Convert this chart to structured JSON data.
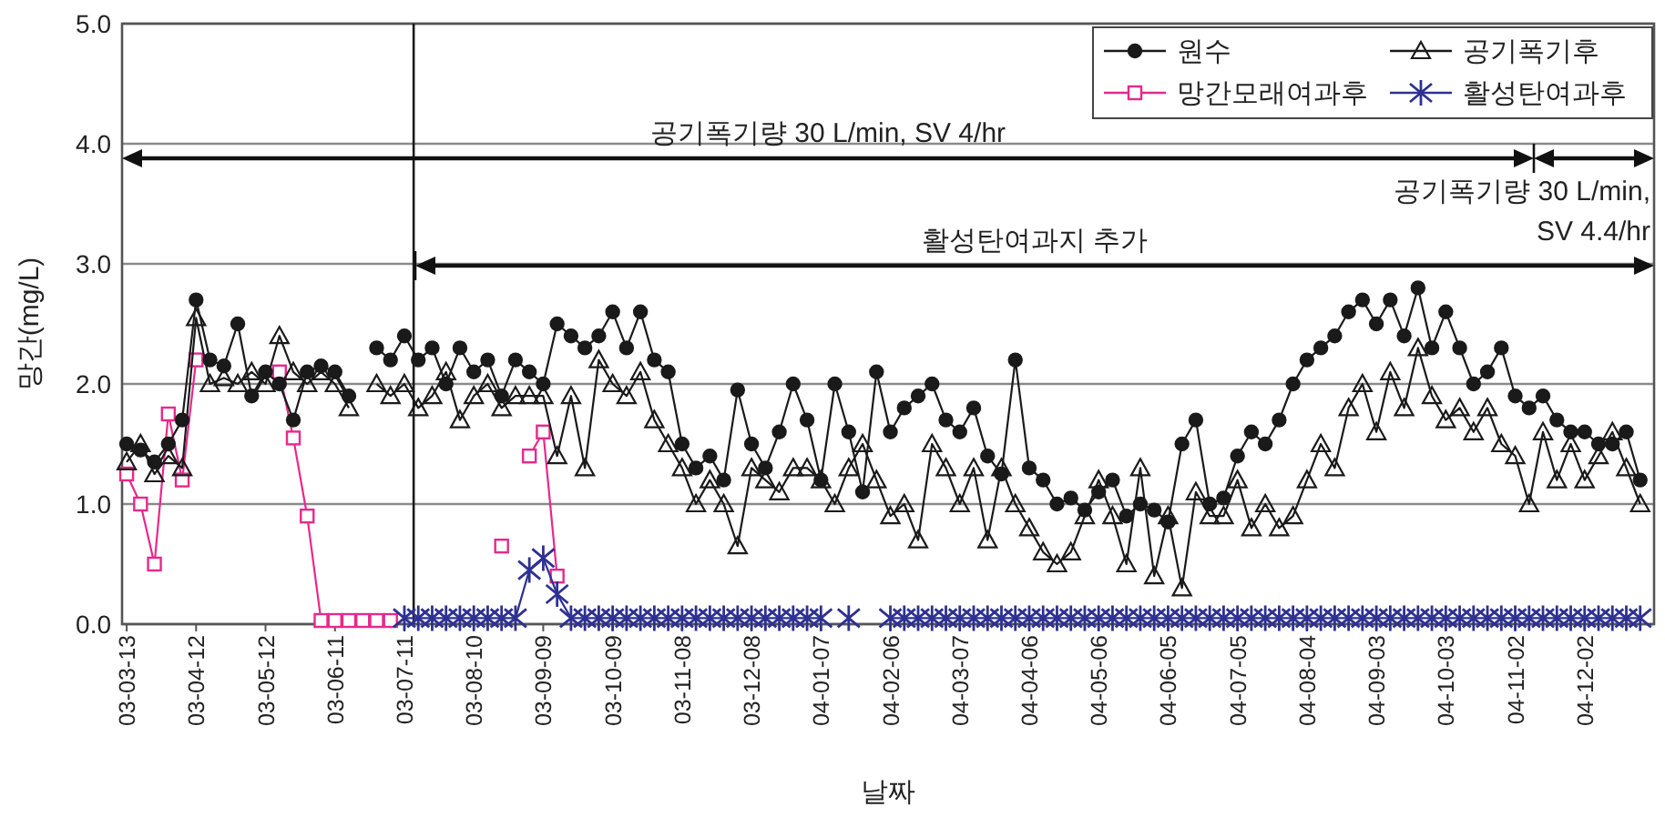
{
  "chart_data": {
    "type": "line",
    "xlabel": "날짜",
    "ylabel": "망간(mg/L)",
    "x": [
      "2003-03-13",
      "2003-03-19",
      "2003-03-25",
      "2003-03-31",
      "2003-04-06",
      "2003-04-12",
      "2003-04-18",
      "2003-04-24",
      "2003-04-30",
      "2003-05-06",
      "2003-05-12",
      "2003-05-18",
      "2003-05-24",
      "2003-05-30",
      "2003-06-05",
      "2003-06-11",
      "2003-06-17",
      "2003-06-23",
      "2003-06-29",
      "2003-07-05",
      "2003-07-11",
      "2003-07-17",
      "2003-07-23",
      "2003-07-29",
      "2003-08-04",
      "2003-08-10",
      "2003-08-16",
      "2003-08-22",
      "2003-08-28",
      "2003-09-03",
      "2003-09-09",
      "2003-09-15",
      "2003-09-21",
      "2003-09-27",
      "2003-10-03",
      "2003-10-09",
      "2003-10-15",
      "2003-10-21",
      "2003-10-27",
      "2003-11-02",
      "2003-11-08",
      "2003-11-14",
      "2003-11-20",
      "2003-11-26",
      "2003-12-02",
      "2003-12-08",
      "2003-12-14",
      "2003-12-20",
      "2003-12-26",
      "2004-01-01",
      "2004-01-07",
      "2004-01-13",
      "2004-01-19",
      "2004-01-25",
      "2004-01-31",
      "2004-02-06",
      "2004-02-12",
      "2004-02-18",
      "2004-02-24",
      "2004-03-01",
      "2004-03-07",
      "2004-03-13",
      "2004-03-19",
      "2004-03-25",
      "2004-03-31",
      "2004-04-06",
      "2004-04-12",
      "2004-04-18",
      "2004-04-24",
      "2004-04-30",
      "2004-05-06",
      "2004-05-12",
      "2004-05-18",
      "2004-05-24",
      "2004-05-30",
      "2004-06-05",
      "2004-06-11",
      "2004-06-17",
      "2004-06-23",
      "2004-06-29",
      "2004-07-05",
      "2004-07-11",
      "2004-07-17",
      "2004-07-23",
      "2004-07-29",
      "2004-08-04",
      "2004-08-10",
      "2004-08-16",
      "2004-08-22",
      "2004-08-28",
      "2004-09-03",
      "2004-09-09",
      "2004-09-15",
      "2004-09-21",
      "2004-09-27",
      "2004-10-03",
      "2004-10-09",
      "2004-10-15",
      "2004-10-21",
      "2004-10-27",
      "2004-11-02",
      "2004-11-08",
      "2004-11-14",
      "2004-11-20",
      "2004-11-26",
      "2004-12-02",
      "2004-12-08",
      "2004-12-14",
      "2004-12-20",
      "2004-12-26"
    ],
    "xlim": [
      "2003-03-11",
      "2005-01-01"
    ],
    "xticks": [
      {
        "value": "2003-03-13",
        "label": "03-03-13"
      },
      {
        "value": "2003-04-12",
        "label": "03-04-12"
      },
      {
        "value": "2003-05-12",
        "label": "03-05-12"
      },
      {
        "value": "2003-06-11",
        "label": "03-06-11"
      },
      {
        "value": "2003-07-11",
        "label": "03-07-11"
      },
      {
        "value": "2003-08-10",
        "label": "03-08-10"
      },
      {
        "value": "2003-09-09",
        "label": "03-09-09"
      },
      {
        "value": "2003-10-09",
        "label": "03-10-09"
      },
      {
        "value": "2003-11-08",
        "label": "03-11-08"
      },
      {
        "value": "2003-12-08",
        "label": "03-12-08"
      },
      {
        "value": "2004-01-07",
        "label": "04-01-07"
      },
      {
        "value": "2004-02-06",
        "label": "04-02-06"
      },
      {
        "value": "2004-03-07",
        "label": "04-03-07"
      },
      {
        "value": "2004-04-06",
        "label": "04-04-06"
      },
      {
        "value": "2004-05-06",
        "label": "04-05-06"
      },
      {
        "value": "2004-06-05",
        "label": "04-06-05"
      },
      {
        "value": "2004-07-05",
        "label": "04-07-05"
      },
      {
        "value": "2004-08-04",
        "label": "04-08-04"
      },
      {
        "value": "2004-09-03",
        "label": "04-09-03"
      },
      {
        "value": "2004-10-03",
        "label": "04-10-03"
      },
      {
        "value": "2004-11-02",
        "label": "04-11-02"
      },
      {
        "value": "2004-12-02",
        "label": "04-12-02"
      }
    ],
    "ylim": [
      0,
      5
    ],
    "yticks": [
      {
        "value": 0,
        "label": "0.0"
      },
      {
        "value": 1,
        "label": "1.0"
      },
      {
        "value": 2,
        "label": "2.0"
      },
      {
        "value": 3,
        "label": "3.0"
      },
      {
        "value": 4,
        "label": "4.0"
      },
      {
        "value": 5,
        "label": "5.0"
      }
    ],
    "grid": "y",
    "legend": "top right",
    "series": [
      {
        "name": "원수",
        "color": "#1a1a1a",
        "marker": "circle",
        "values": [
          1.5,
          1.45,
          1.35,
          1.5,
          1.7,
          2.7,
          2.2,
          2.15,
          2.5,
          1.9,
          2.1,
          2.0,
          1.7,
          2.1,
          2.15,
          2.1,
          1.9,
          null,
          2.3,
          2.2,
          2.4,
          2.2,
          2.3,
          2.0,
          2.3,
          2.1,
          2.2,
          1.9,
          2.2,
          2.1,
          2.0,
          2.5,
          2.4,
          2.3,
          2.4,
          2.6,
          2.3,
          2.6,
          2.2,
          2.1,
          1.5,
          1.3,
          1.4,
          1.2,
          1.95,
          1.5,
          1.3,
          1.6,
          2.0,
          1.7,
          1.2,
          2.0,
          1.6,
          1.1,
          2.1,
          1.6,
          1.8,
          1.9,
          2.0,
          1.7,
          1.6,
          1.8,
          1.4,
          1.25,
          2.2,
          1.3,
          1.2,
          1.0,
          1.05,
          0.95,
          1.1,
          1.2,
          0.9,
          1.0,
          0.95,
          0.85,
          1.5,
          1.7,
          1.0,
          1.05,
          1.4,
          1.6,
          1.5,
          1.7,
          2.0,
          2.2,
          2.3,
          2.4,
          2.6,
          2.7,
          2.5,
          2.7,
          2.4,
          2.8,
          2.3,
          2.6,
          2.3,
          2.0,
          2.1,
          2.3,
          1.9,
          1.8,
          1.9,
          1.7,
          1.6,
          1.6,
          1.5,
          1.5,
          1.6,
          1.2
        ]
      },
      {
        "name": "공기폭기후",
        "color": "#1a1a1a",
        "marker": "triangle",
        "values": [
          1.35,
          1.5,
          1.25,
          1.4,
          1.3,
          2.55,
          2.0,
          2.05,
          2.0,
          2.1,
          2.0,
          2.4,
          2.1,
          2.0,
          2.1,
          2.0,
          1.8,
          null,
          2.0,
          1.9,
          2.0,
          1.8,
          1.9,
          2.1,
          1.7,
          1.9,
          2.0,
          1.8,
          1.9,
          1.9,
          1.9,
          1.4,
          1.9,
          1.3,
          2.2,
          2.0,
          1.9,
          2.1,
          1.7,
          1.5,
          1.3,
          1.0,
          1.2,
          1.0,
          0.65,
          1.3,
          1.2,
          1.1,
          1.3,
          1.3,
          1.2,
          1.0,
          1.3,
          1.5,
          1.2,
          0.9,
          1.0,
          0.7,
          1.5,
          1.3,
          1.0,
          1.3,
          0.7,
          1.3,
          1.0,
          0.8,
          0.6,
          0.5,
          0.6,
          0.9,
          1.2,
          0.9,
          0.5,
          1.3,
          0.4,
          0.9,
          0.3,
          1.1,
          0.9,
          0.9,
          1.2,
          0.8,
          1.0,
          0.8,
          0.9,
          1.2,
          1.5,
          1.3,
          1.8,
          2.0,
          1.6,
          2.1,
          1.8,
          2.3,
          1.9,
          1.7,
          1.8,
          1.6,
          1.8,
          1.5,
          1.4,
          1.0,
          1.6,
          1.2,
          1.5,
          1.2,
          1.4,
          1.6,
          1.3,
          1.0
        ]
      },
      {
        "name": "망간모래여과후",
        "color": "#e8288c",
        "marker": "square",
        "values": [
          1.25,
          1.0,
          0.5,
          1.75,
          1.2,
          2.2,
          null,
          null,
          null,
          null,
          null,
          2.1,
          1.55,
          0.9,
          0.03,
          0.03,
          0.03,
          0.03,
          0.03,
          0.03,
          null,
          null,
          null,
          null,
          null,
          null,
          null,
          0.65,
          null,
          1.4,
          1.6,
          0.4,
          null,
          null,
          null,
          null,
          null,
          null,
          null,
          null,
          null,
          null,
          null,
          null,
          null,
          null,
          null,
          null,
          null,
          null,
          null,
          null,
          null,
          null,
          null,
          null,
          null,
          null,
          null,
          null,
          null,
          null,
          null,
          null,
          null,
          null,
          null,
          null,
          null,
          null,
          null,
          null,
          null,
          null,
          null,
          null,
          null,
          null,
          null,
          null,
          null,
          null,
          null,
          null,
          null,
          null,
          null,
          null,
          null,
          null,
          null,
          null,
          null,
          null,
          null,
          null,
          null,
          null,
          null,
          null,
          null,
          null,
          null,
          null,
          null,
          null,
          null,
          null,
          null,
          null
        ]
      },
      {
        "name": "활성탄여과후",
        "color": "#2e3192",
        "marker": "cross",
        "values": [
          null,
          null,
          null,
          null,
          null,
          null,
          null,
          null,
          null,
          null,
          null,
          null,
          null,
          null,
          null,
          null,
          null,
          null,
          null,
          null,
          0.05,
          0.05,
          0.05,
          0.05,
          0.05,
          0.05,
          0.05,
          0.05,
          0.05,
          0.45,
          0.55,
          0.25,
          0.05,
          0.05,
          0.05,
          0.05,
          0.05,
          0.05,
          0.05,
          0.05,
          0.05,
          0.05,
          0.05,
          0.05,
          0.05,
          0.05,
          0.05,
          0.05,
          0.05,
          0.05,
          0.05,
          null,
          0.05,
          null,
          null,
          0.05,
          0.05,
          0.05,
          0.05,
          0.05,
          0.05,
          0.05,
          0.05,
          0.05,
          0.05,
          0.05,
          0.05,
          0.05,
          0.05,
          0.05,
          0.05,
          0.05,
          0.05,
          0.05,
          0.05,
          0.05,
          0.05,
          0.05,
          0.05,
          0.05,
          0.05,
          0.05,
          0.05,
          0.05,
          0.05,
          0.05,
          0.05,
          0.05,
          0.05,
          0.05,
          0.05,
          0.05,
          0.05,
          0.05,
          0.05,
          0.05,
          0.05,
          0.05,
          0.05,
          0.05,
          0.05,
          0.05,
          0.05,
          0.05,
          0.05,
          0.05,
          0.05,
          0.05,
          0.05,
          0.05
        ]
      }
    ],
    "ref_lines": [
      {
        "axis": "x",
        "value": "2003-07-15",
        "color": "#1a1a1a"
      }
    ],
    "annotations": [
      "공기폭기량 30 L/min, SV 4/hr",
      "공기폭기량 30 L/min, SV 4.4/hr",
      "활성탄여과지 추가"
    ]
  }
}
